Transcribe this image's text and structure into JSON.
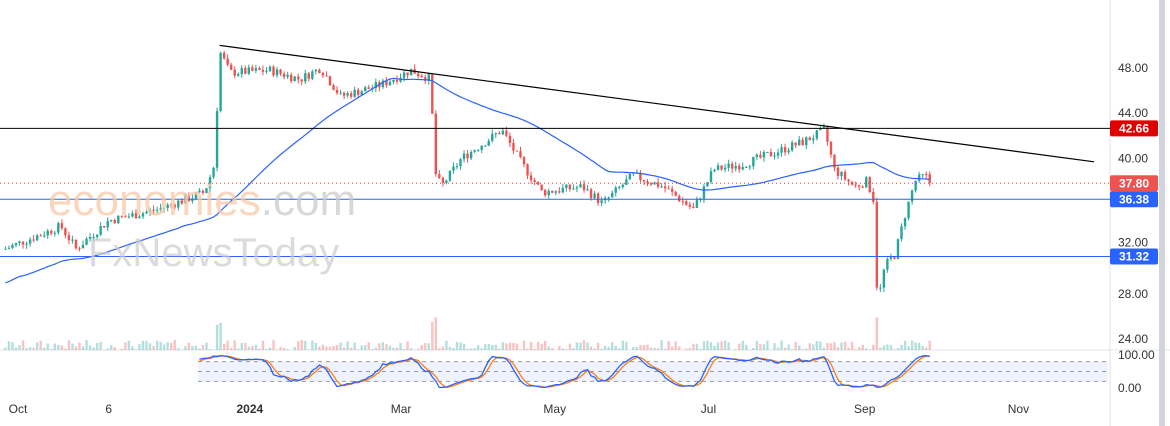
{
  "chart_data": {
    "type": "candlestick",
    "title": "",
    "y_ticks": [
      "48.00",
      "44.00",
      "40.00",
      "32.00",
      "28.00",
      "24.00"
    ],
    "y_tick_values": [
      48,
      44,
      40,
      32,
      28,
      24
    ],
    "ylim": [
      22.5,
      52
    ],
    "x_ticks": [
      {
        "label": "Oct",
        "date": "2023-10-01"
      },
      {
        "label": "6",
        "date": "2023-11-06"
      },
      {
        "label": "2024",
        "date": "2024-01-01"
      },
      {
        "label": "Mar",
        "date": "2024-03-01"
      },
      {
        "label": "May",
        "date": "2024-05-01"
      },
      {
        "label": "Jul",
        "date": "2024-07-01"
      },
      {
        "label": "Sep",
        "date": "2024-09-01"
      },
      {
        "label": "Nov",
        "date": "2024-11-01"
      }
    ],
    "price_path": [
      [
        "2023-09-26",
        32
      ],
      [
        "2023-10-18",
        34
      ],
      [
        "2023-10-24",
        32
      ],
      [
        "2023-11-06",
        34.5
      ],
      [
        "2023-11-26",
        35.5
      ],
      [
        "2023-12-14",
        37
      ],
      [
        "2023-12-18",
        39.5
      ],
      [
        "2023-12-20",
        49.5
      ],
      [
        "2023-12-24",
        47.6
      ],
      [
        "2024-01-09",
        47.8
      ],
      [
        "2024-01-21",
        47
      ],
      [
        "2024-01-29",
        48
      ],
      [
        "2024-02-06",
        45.5
      ],
      [
        "2024-02-22",
        46.5
      ],
      [
        "2024-03-05",
        47.8
      ],
      [
        "2024-03-13",
        47
      ],
      [
        "2024-03-14",
        39
      ],
      [
        "2024-03-17",
        37.5
      ],
      [
        "2024-03-25",
        40
      ],
      [
        "2024-04-10",
        42.5
      ],
      [
        "2024-04-18",
        39.5
      ],
      [
        "2024-04-26",
        37
      ],
      [
        "2024-05-12",
        37.5
      ],
      [
        "2024-05-20",
        36
      ],
      [
        "2024-06-01",
        38.5
      ],
      [
        "2024-06-13",
        37.5
      ],
      [
        "2024-06-25",
        35.5
      ],
      [
        "2024-07-03",
        39
      ],
      [
        "2024-07-15",
        39.5
      ],
      [
        "2024-07-27",
        40.5
      ],
      [
        "2024-08-08",
        41.5
      ],
      [
        "2024-08-16",
        42.5
      ],
      [
        "2024-08-20",
        39
      ],
      [
        "2024-08-28",
        37.5
      ],
      [
        "2024-09-02",
        38
      ],
      [
        "2024-09-05",
        36
      ],
      [
        "2024-09-06",
        27
      ],
      [
        "2024-09-09",
        30.5
      ],
      [
        "2024-09-13",
        31.5
      ],
      [
        "2024-09-17",
        35
      ],
      [
        "2024-09-21",
        38
      ],
      [
        "2024-09-25",
        38.5
      ],
      [
        "2024-09-27",
        37.8
      ]
    ],
    "moving_average_period": 50,
    "trendline": [
      [
        "2023-12-20",
        50
      ],
      [
        "2024-12-01",
        39.7
      ]
    ],
    "levels": [
      {
        "label": "42.66",
        "value": 42.66,
        "color": "#e00000",
        "line": "#000000"
      },
      {
        "label": "37.80",
        "value": 37.8,
        "color": "#ef5350",
        "line": "#e53935",
        "dotted": true
      },
      {
        "label": "36.38",
        "value": 36.38,
        "color": "#2962ff",
        "line": "#2962ff"
      },
      {
        "label": "31.32",
        "value": 31.32,
        "color": "#2962ff",
        "line": "#2962ff"
      }
    ],
    "stochastic": {
      "ticks": [
        "100.00",
        "0.00"
      ],
      "bands": [
        80,
        50,
        20
      ]
    },
    "colors": {
      "up": "#26a69a",
      "down": "#ef5350",
      "ma": "#2962ff",
      "k": "#2962ff",
      "d": "#ff7f0e"
    }
  },
  "watermark": {
    "brand": "economies",
    "suffix": ".com",
    "partner": "FxNewsToday"
  }
}
